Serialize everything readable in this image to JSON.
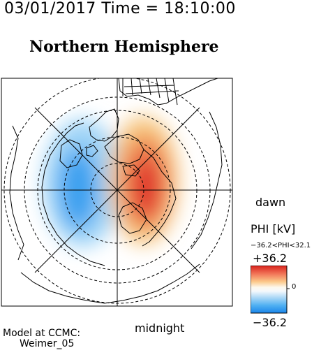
{
  "header": {
    "date": "03/01/2017",
    "time_label": "Time = 18:10:00"
  },
  "title": "Northern Hemisphere",
  "labels": {
    "dawn": "dawn",
    "midnight": "midnight"
  },
  "colorbar": {
    "title": "PHI [kV]",
    "range_text": "−36.2<PHI<32.1",
    "max_label": "+36.2",
    "min_label": "−36.2",
    "zero_label": "0",
    "min_value": -36.2,
    "max_value": 32.1,
    "colors": {
      "negative": "#1e90ff",
      "positive": "#e53024",
      "neutral": "#fbfbf7"
    }
  },
  "model": {
    "line1": "Model at CCMC:",
    "line2": "Weimer_05"
  }
}
